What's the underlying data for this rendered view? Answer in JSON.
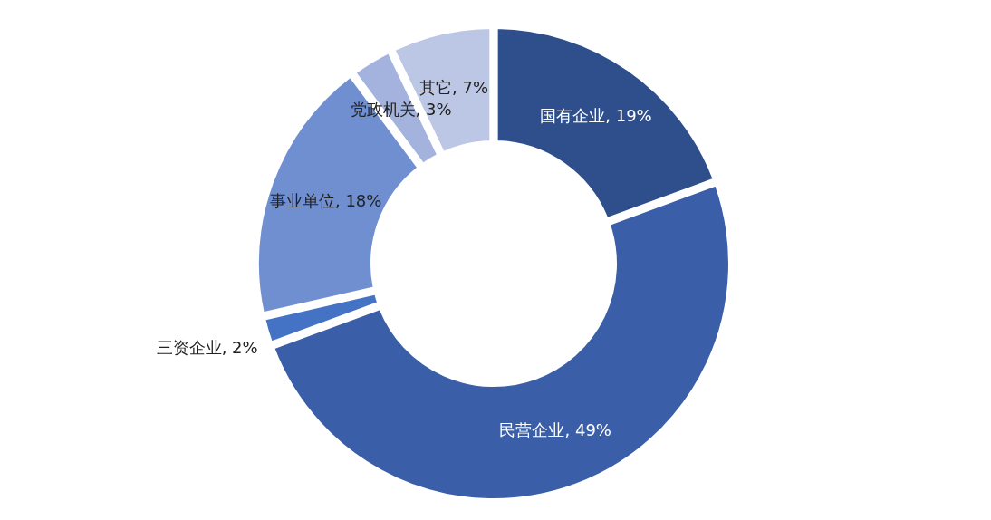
{
  "chart_data": {
    "type": "donut",
    "categories": [
      "国有企业",
      "民营企业",
      "三资企业",
      "事业单位",
      "党政机关",
      "其它"
    ],
    "values": [
      19,
      49,
      2,
      18,
      3,
      7
    ],
    "value_labels": [
      "19%",
      "49%",
      "2%",
      "18%",
      "3%",
      "7%"
    ],
    "colors": [
      "#2e4f8c",
      "#3a5ea8",
      "#4472c4",
      "#6f8fd1",
      "#a3b3de",
      "#bcc7e6"
    ],
    "legend": false
  }
}
